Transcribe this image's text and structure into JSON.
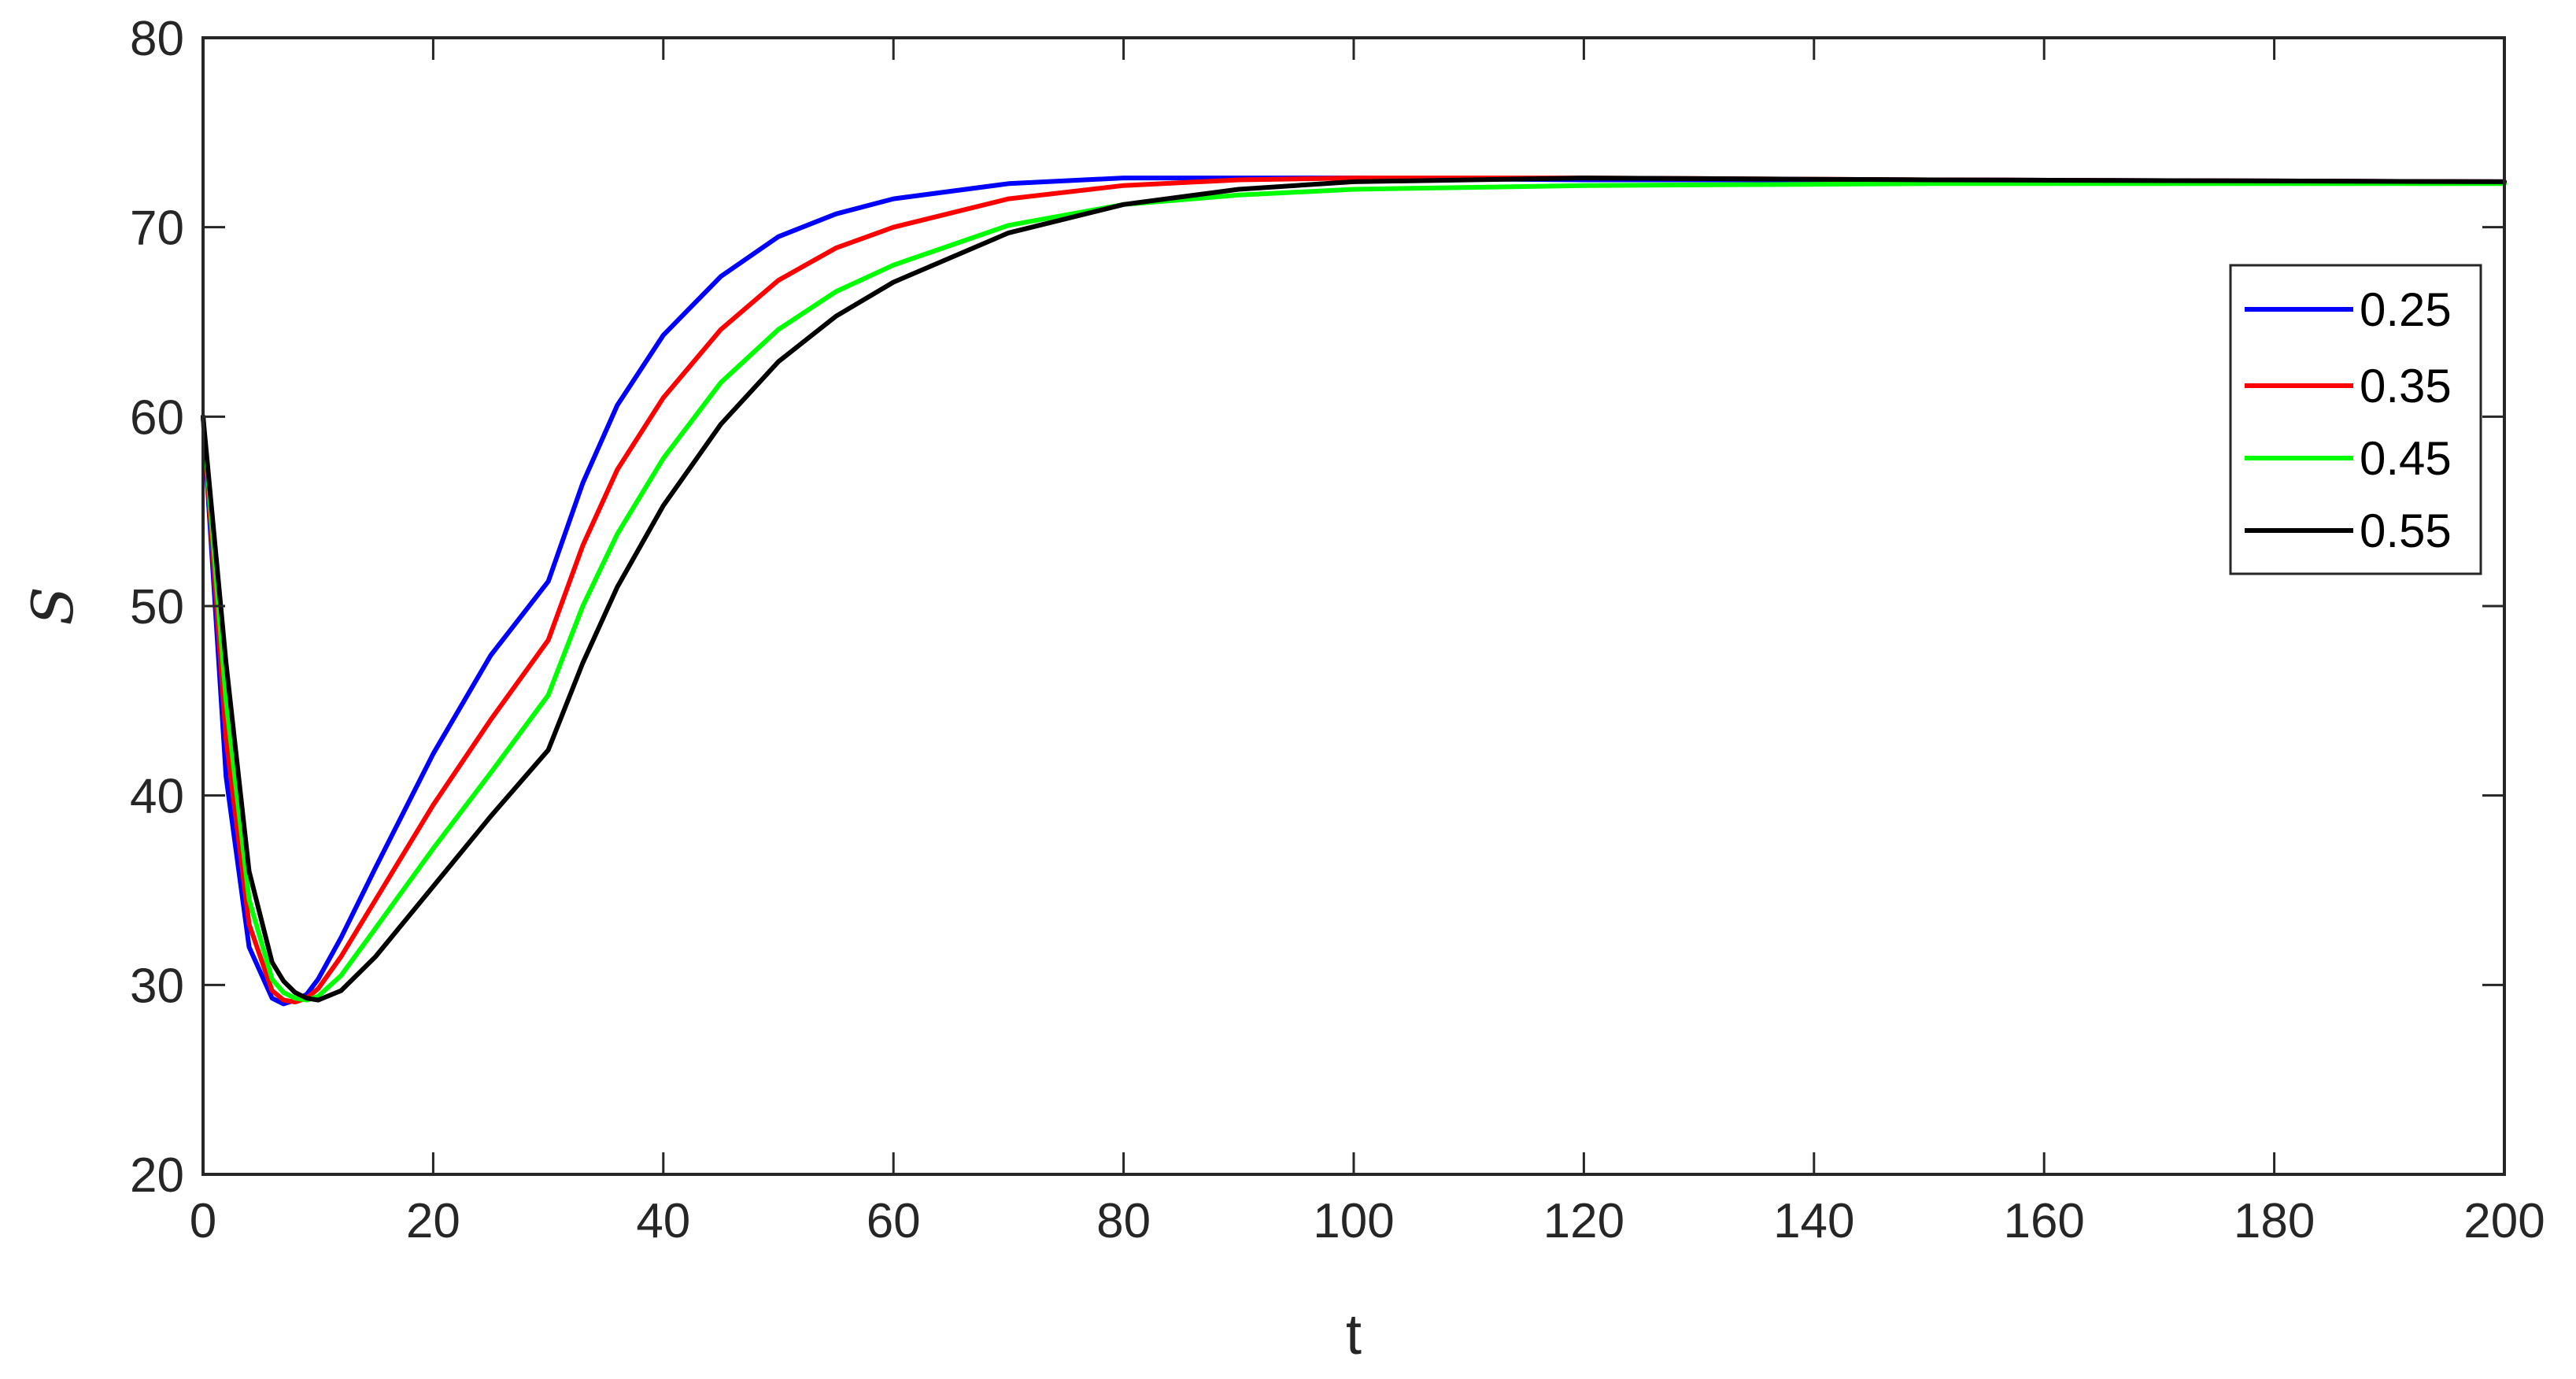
{
  "chart_data": {
    "type": "line",
    "title": "",
    "xlabel": "t",
    "ylabel": "S",
    "xlim": [
      0,
      200
    ],
    "ylim": [
      20,
      80
    ],
    "xticks": [
      0,
      20,
      40,
      60,
      80,
      100,
      120,
      140,
      160,
      180,
      200
    ],
    "yticks": [
      20,
      30,
      40,
      50,
      60,
      70,
      80
    ],
    "grid": false,
    "legend_position": "top-right",
    "series": [
      {
        "name": "0.25",
        "color": "#0000ff",
        "x": [
          0,
          2,
          4,
          6,
          7,
          8,
          9,
          10,
          12,
          15,
          20,
          25,
          30,
          33,
          36,
          40,
          45,
          50,
          55,
          60,
          70,
          80,
          90,
          100,
          120,
          150,
          200
        ],
        "y": [
          60,
          41,
          32,
          29.3,
          29.0,
          29.2,
          29.5,
          30.3,
          32.5,
          36.2,
          42.2,
          47.4,
          51.3,
          56.5,
          60.6,
          64.3,
          67.4,
          69.5,
          70.7,
          71.5,
          72.3,
          72.6,
          72.6,
          72.6,
          72.5,
          72.5,
          72.4
        ]
      },
      {
        "name": "0.35",
        "color": "#ff0000",
        "x": [
          0,
          2,
          4,
          6,
          7,
          8,
          9,
          10,
          12,
          15,
          20,
          25,
          30,
          33,
          36,
          40,
          45,
          50,
          55,
          60,
          70,
          80,
          90,
          100,
          120,
          150,
          200
        ],
        "y": [
          60,
          43,
          33.2,
          29.7,
          29.2,
          29.1,
          29.3,
          29.8,
          31.5,
          34.5,
          39.5,
          44.0,
          48.2,
          53.2,
          57.2,
          61.0,
          64.6,
          67.2,
          68.9,
          70.0,
          71.5,
          72.2,
          72.5,
          72.6,
          72.6,
          72.5,
          72.4
        ]
      },
      {
        "name": "0.45",
        "color": "#00ff00",
        "x": [
          0,
          2,
          4,
          6,
          7,
          8,
          9,
          10,
          12,
          15,
          20,
          25,
          30,
          33,
          36,
          40,
          45,
          50,
          55,
          60,
          70,
          80,
          90,
          100,
          120,
          150,
          200
        ],
        "y": [
          60,
          45,
          34.5,
          30.3,
          29.6,
          29.3,
          29.2,
          29.4,
          30.5,
          33.0,
          37.2,
          41.2,
          45.3,
          50.0,
          53.8,
          57.8,
          61.8,
          64.6,
          66.6,
          68.0,
          70.1,
          71.2,
          71.7,
          72.0,
          72.2,
          72.3,
          72.3
        ]
      },
      {
        "name": "0.55",
        "color": "#000000",
        "x": [
          0,
          2,
          4,
          6,
          7,
          8,
          9,
          10,
          12,
          15,
          20,
          25,
          30,
          33,
          36,
          40,
          45,
          50,
          55,
          60,
          70,
          80,
          90,
          100,
          120,
          150,
          200
        ],
        "y": [
          60,
          47,
          36.0,
          31.2,
          30.2,
          29.6,
          29.3,
          29.2,
          29.7,
          31.5,
          35.2,
          38.9,
          42.4,
          47.0,
          51.0,
          55.3,
          59.6,
          62.9,
          65.3,
          67.1,
          69.7,
          71.2,
          72.0,
          72.4,
          72.6,
          72.5,
          72.4
        ]
      }
    ]
  }
}
